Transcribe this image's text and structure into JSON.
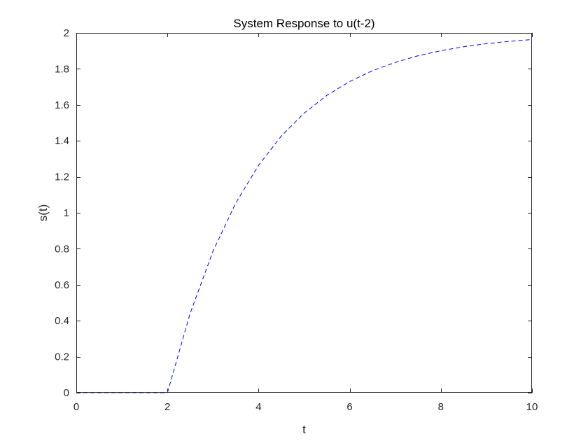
{
  "chart_data": {
    "type": "line",
    "title": "System Response to u(t-2)",
    "xlabel": "t",
    "ylabel": "s(t)",
    "xlim": [
      0,
      10
    ],
    "ylim": [
      0,
      2
    ],
    "grid": false,
    "x_ticks": [
      {
        "value": 0,
        "label": "0"
      },
      {
        "value": 2,
        "label": "2"
      },
      {
        "value": 4,
        "label": "4"
      },
      {
        "value": 6,
        "label": "6"
      },
      {
        "value": 8,
        "label": "8"
      },
      {
        "value": 10,
        "label": "10"
      }
    ],
    "y_ticks": [
      {
        "value": 0,
        "label": "0"
      },
      {
        "value": 0.2,
        "label": "0.2"
      },
      {
        "value": 0.4,
        "label": "0.4"
      },
      {
        "value": 0.6,
        "label": "0.6"
      },
      {
        "value": 0.8,
        "label": "0.8"
      },
      {
        "value": 1,
        "label": "1"
      },
      {
        "value": 1.2,
        "label": "1.2"
      },
      {
        "value": 1.4,
        "label": "1.4"
      },
      {
        "value": 1.6,
        "label": "1.6"
      },
      {
        "value": 1.8,
        "label": "1.8"
      },
      {
        "value": 2,
        "label": "2"
      }
    ],
    "series": [
      {
        "color": "#0000ff",
        "line_style": "dashed",
        "x": [
          0,
          0.5,
          1,
          1.5,
          2,
          2.5,
          3,
          3.5,
          4,
          4.5,
          5,
          5.5,
          6,
          6.5,
          7,
          7.5,
          8,
          8.5,
          9,
          9.5,
          10
        ],
        "y": [
          0,
          0,
          0,
          0,
          0,
          0.442,
          0.787,
          1.055,
          1.264,
          1.427,
          1.554,
          1.653,
          1.73,
          1.79,
          1.836,
          1.873,
          1.901,
          1.923,
          1.94,
          1.953,
          1.963
        ]
      }
    ]
  }
}
